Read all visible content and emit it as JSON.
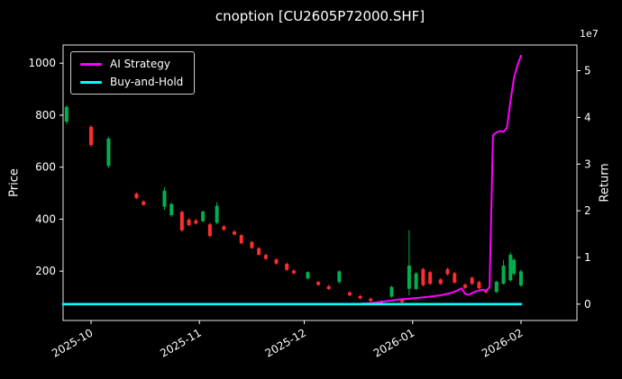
{
  "chart_data": {
    "type": "candlestick+line",
    "title": "cnoption [CU2605P72000.SHF]",
    "background": "#000000",
    "text_color": "#ffffff",
    "grid": false,
    "legend_position": "upper-left",
    "x_axis": {
      "domain": [
        "2025-09-23",
        "2026-02-17"
      ],
      "ticks": [
        {
          "label": "2025-10",
          "date": "2025-10-01"
        },
        {
          "label": "2025-11",
          "date": "2025-11-01"
        },
        {
          "label": "2025-12",
          "date": "2025-12-01"
        },
        {
          "label": "2026-01",
          "date": "2026-01-01"
        },
        {
          "label": "2026-02",
          "date": "2026-02-01"
        }
      ]
    },
    "y_left": {
      "label": "Price",
      "ticks": [
        200,
        400,
        600,
        800,
        1000
      ],
      "range": [
        10,
        1070
      ]
    },
    "y_right": {
      "label": "Return",
      "ticks": [
        0,
        1,
        2,
        3,
        4,
        5
      ],
      "offset_text": "1e7",
      "range_1e7": [
        -0.35,
        5.55
      ]
    },
    "legend": [
      {
        "label": "AI Strategy",
        "color": "#ff00ff"
      },
      {
        "label": "Buy-and-Hold",
        "color": "#00ffff"
      }
    ],
    "candle_colors": {
      "up": "#00b050",
      "down": "#ff2d2d"
    },
    "candles": [
      [
        "2025-09-24",
        775,
        838,
        765,
        832
      ],
      [
        "2025-10-01",
        755,
        763,
        678,
        685
      ],
      [
        "2025-10-06",
        605,
        716,
        597,
        710
      ],
      [
        "2025-10-14",
        498,
        503,
        477,
        481
      ],
      [
        "2025-10-16",
        468,
        473,
        451,
        455
      ],
      [
        "2025-10-22",
        448,
        523,
        436,
        509
      ],
      [
        "2025-10-24",
        415,
        463,
        409,
        458
      ],
      [
        "2025-10-27",
        428,
        434,
        351,
        357
      ],
      [
        "2025-10-29",
        398,
        405,
        371,
        377
      ],
      [
        "2025-10-31",
        395,
        401,
        379,
        383
      ],
      [
        "2025-11-02",
        392,
        433,
        388,
        429
      ],
      [
        "2025-11-04",
        380,
        386,
        329,
        335
      ],
      [
        "2025-11-06",
        386,
        465,
        381,
        451
      ],
      [
        "2025-11-08",
        372,
        378,
        355,
        359
      ],
      [
        "2025-11-11",
        352,
        358,
        337,
        341
      ],
      [
        "2025-11-13",
        338,
        343,
        303,
        307
      ],
      [
        "2025-11-16",
        312,
        317,
        285,
        289
      ],
      [
        "2025-11-18",
        288,
        293,
        259,
        263
      ],
      [
        "2025-11-20",
        262,
        267,
        243,
        247
      ],
      [
        "2025-11-23",
        245,
        249,
        225,
        229
      ],
      [
        "2025-11-26",
        228,
        233,
        201,
        205
      ],
      [
        "2025-11-28",
        202,
        207,
        188,
        191
      ],
      [
        "2025-12-02",
        172,
        199,
        168,
        196
      ],
      [
        "2025-12-05",
        158,
        163,
        143,
        147
      ],
      [
        "2025-12-08",
        142,
        147,
        127,
        131
      ],
      [
        "2025-12-11",
        158,
        203,
        152,
        199
      ],
      [
        "2025-12-14",
        118,
        123,
        103,
        107
      ],
      [
        "2025-12-17",
        104,
        109,
        91,
        95
      ],
      [
        "2025-12-20",
        94,
        99,
        81,
        85
      ],
      [
        "2025-12-23",
        84,
        89,
        73,
        77
      ],
      [
        "2025-12-26",
        102,
        144,
        97,
        139
      ],
      [
        "2025-12-29",
        88,
        92,
        76,
        80
      ],
      [
        "2025-12-31",
        132,
        358,
        107,
        221
      ],
      [
        "2026-01-02",
        131,
        196,
        126,
        191
      ],
      [
        "2026-01-04",
        208,
        213,
        141,
        146
      ],
      [
        "2026-01-06",
        196,
        201,
        146,
        151
      ],
      [
        "2026-01-09",
        168,
        173,
        147,
        151
      ],
      [
        "2026-01-11",
        208,
        213,
        183,
        188
      ],
      [
        "2026-01-13",
        192,
        197,
        151,
        156
      ],
      [
        "2026-01-16",
        148,
        153,
        131,
        136
      ],
      [
        "2026-01-18",
        175,
        179,
        146,
        151
      ],
      [
        "2026-01-20",
        158,
        163,
        129,
        134
      ],
      [
        "2026-01-22",
        126,
        131,
        113,
        118
      ],
      [
        "2026-01-25",
        120,
        163,
        115,
        159
      ],
      [
        "2026-01-27",
        152,
        243,
        148,
        221
      ],
      [
        "2026-01-29",
        165,
        271,
        159,
        263
      ],
      [
        "2026-01-30",
        190,
        249,
        184,
        243
      ],
      [
        "2026-02-01",
        145,
        206,
        139,
        199
      ]
    ],
    "series": [
      {
        "name": "AI Strategy",
        "color": "#ff00ff",
        "width": 2,
        "unit": "1e7",
        "points": [
          [
            "2025-09-23",
            0.0
          ],
          [
            "2025-11-01",
            0.0
          ],
          [
            "2025-12-15",
            0.0
          ],
          [
            "2025-12-20",
            0.02
          ],
          [
            "2025-12-24",
            0.06
          ],
          [
            "2025-12-28",
            0.1
          ],
          [
            "2026-01-02",
            0.13
          ],
          [
            "2026-01-06",
            0.16
          ],
          [
            "2026-01-09",
            0.19
          ],
          [
            "2026-01-12",
            0.24
          ],
          [
            "2026-01-14",
            0.3
          ],
          [
            "2026-01-15",
            0.34
          ],
          [
            "2026-01-16",
            0.22
          ],
          [
            "2026-01-17",
            0.2
          ],
          [
            "2026-01-19",
            0.27
          ],
          [
            "2026-01-21",
            0.31
          ],
          [
            "2026-01-22",
            0.29
          ],
          [
            "2026-01-23",
            0.36
          ],
          [
            "2026-01-24",
            3.62
          ],
          [
            "2026-01-25",
            3.68
          ],
          [
            "2026-01-26",
            3.71
          ],
          [
            "2026-01-27",
            3.69
          ],
          [
            "2026-01-28",
            3.78
          ],
          [
            "2026-01-29",
            4.35
          ],
          [
            "2026-01-30",
            4.85
          ],
          [
            "2026-01-31",
            5.12
          ],
          [
            "2026-02-01",
            5.32
          ]
        ]
      },
      {
        "name": "Buy-and-Hold",
        "color": "#00ffff",
        "width": 2.6,
        "unit": "1e7",
        "points": [
          [
            "2025-09-23",
            0.0
          ],
          [
            "2026-02-01",
            0.0
          ]
        ]
      }
    ]
  }
}
